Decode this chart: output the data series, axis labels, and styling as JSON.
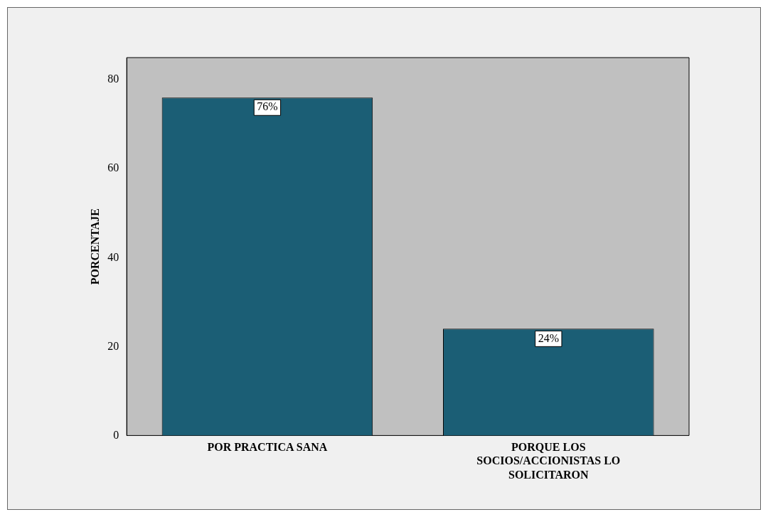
{
  "chart_data": {
    "type": "bar",
    "ylabel": "PORCENTAJE",
    "categories": [
      "POR PRACTICA SANA",
      "PORQUE LOS SOCIOS/ACCIONISTAS LO SOLICITARON"
    ],
    "values": [
      76,
      24
    ],
    "value_labels": [
      "76%",
      "24%"
    ],
    "color": "#1b5e75",
    "ylim": [
      0,
      85
    ],
    "yticks": [
      0,
      20,
      40,
      60,
      80
    ],
    "grid": false,
    "legend": false
  }
}
